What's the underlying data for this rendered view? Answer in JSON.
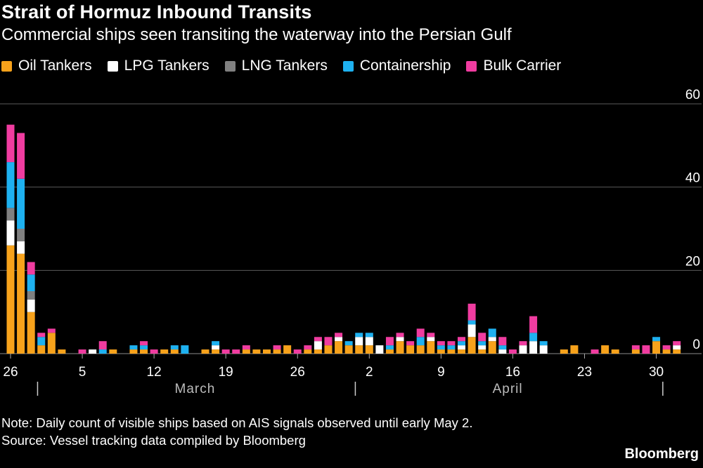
{
  "title": "Strait of Hormuz Inbound Transits",
  "subtitle": "Commercial ships seen transiting the waterway into the Persian Gulf",
  "legend": [
    {
      "label": "Oil Tankers",
      "color": "#F7A21B"
    },
    {
      "label": "LPG Tankers",
      "color": "#FFFFFF"
    },
    {
      "label": "LNG Tankers",
      "color": "#808080"
    },
    {
      "label": "Containership",
      "color": "#1EB1F0"
    },
    {
      "label": "Bulk Carrier",
      "color": "#F03CA0"
    }
  ],
  "note": "Note: Daily count of visible ships based on AIS signals observed until early May 2.",
  "source": "Source: Vessel tracking data compiled by Bloomberg",
  "brand": "Bloomberg",
  "chart_data": {
    "type": "bar",
    "stacked": true,
    "ylim": [
      0,
      60
    ],
    "yticks": [
      0,
      20,
      40,
      60
    ],
    "grid": true,
    "x_tick_labels": [
      "26",
      "5",
      "12",
      "19",
      "26",
      "2",
      "9",
      "16",
      "23",
      "30"
    ],
    "month_labels": [
      "March",
      "April"
    ],
    "categories": [
      "Feb 26",
      "Feb 27",
      "Feb 28",
      "Mar 1",
      "Mar 2",
      "Mar 3",
      "Mar 4",
      "Mar 5",
      "Mar 6",
      "Mar 7",
      "Mar 8",
      "Mar 9",
      "Mar 10",
      "Mar 11",
      "Mar 12",
      "Mar 13",
      "Mar 14",
      "Mar 15",
      "Mar 16",
      "Mar 17",
      "Mar 18",
      "Mar 19",
      "Mar 20",
      "Mar 21",
      "Mar 22",
      "Mar 23",
      "Mar 24",
      "Mar 25",
      "Mar 26",
      "Mar 27",
      "Mar 28",
      "Mar 29",
      "Mar 30",
      "Mar 31",
      "Apr 1",
      "Apr 2",
      "Apr 3",
      "Apr 4",
      "Apr 5",
      "Apr 6",
      "Apr 7",
      "Apr 8",
      "Apr 9",
      "Apr 10",
      "Apr 11",
      "Apr 12",
      "Apr 13",
      "Apr 14",
      "Apr 15",
      "Apr 16",
      "Apr 17",
      "Apr 18",
      "Apr 19",
      "Apr 20",
      "Apr 21",
      "Apr 22",
      "Apr 23",
      "Apr 24",
      "Apr 25",
      "Apr 26",
      "Apr 27",
      "Apr 28",
      "Apr 29",
      "Apr 30",
      "May 1",
      "May 2"
    ],
    "series": [
      {
        "name": "Oil Tankers",
        "color": "#F7A21B",
        "values": [
          26,
          24,
          10,
          2,
          5,
          1,
          0,
          0,
          0,
          0,
          1,
          0,
          1,
          1,
          0,
          1,
          1,
          0,
          0,
          1,
          1,
          0,
          0,
          1,
          1,
          1,
          1,
          2,
          0,
          1,
          1,
          2,
          3,
          2,
          2,
          2,
          0,
          1,
          3,
          2,
          2,
          3,
          1,
          1,
          1,
          4,
          1,
          3,
          0,
          0,
          0,
          0,
          0,
          0,
          1,
          2,
          0,
          0,
          2,
          1,
          0,
          1,
          0,
          3,
          1,
          1
        ]
      },
      {
        "name": "LPG Tankers",
        "color": "#FFFFFF",
        "values": [
          6,
          3,
          3,
          0,
          0,
          0,
          0,
          0,
          1,
          0,
          0,
          0,
          0,
          0,
          0,
          0,
          0,
          0,
          0,
          0,
          1,
          0,
          0,
          0,
          0,
          0,
          0,
          0,
          0,
          0,
          2,
          0,
          1,
          0,
          2,
          2,
          2,
          0,
          1,
          0,
          0,
          1,
          0,
          0,
          1,
          3,
          1,
          1,
          1,
          0,
          2,
          3,
          2,
          0,
          0,
          0,
          0,
          0,
          0,
          0,
          0,
          0,
          0,
          0,
          0,
          1
        ]
      },
      {
        "name": "LNG Tankers",
        "color": "#808080",
        "values": [
          3,
          3,
          2,
          0,
          0,
          0,
          0,
          0,
          0,
          0,
          0,
          0,
          0,
          0,
          0,
          0,
          0,
          0,
          0,
          0,
          0,
          0,
          0,
          0,
          0,
          0,
          0,
          0,
          0,
          0,
          0,
          0,
          0,
          0,
          0,
          0,
          0,
          0,
          0,
          0,
          0,
          0,
          0,
          0,
          0,
          0,
          0,
          0,
          0,
          0,
          0,
          0,
          0,
          0,
          0,
          0,
          0,
          0,
          0,
          0,
          0,
          0,
          0,
          0,
          0,
          0
        ]
      },
      {
        "name": "Containership",
        "color": "#1EB1F0",
        "values": [
          11,
          12,
          4,
          2,
          0,
          0,
          0,
          0,
          0,
          1,
          0,
          0,
          1,
          1,
          0,
          0,
          1,
          2,
          0,
          0,
          1,
          0,
          0,
          0,
          0,
          0,
          0,
          0,
          0,
          0,
          0,
          0,
          0,
          1,
          1,
          1,
          0,
          1,
          0,
          0,
          2,
          0,
          1,
          1,
          1,
          1,
          1,
          2,
          1,
          0,
          0,
          2,
          1,
          0,
          0,
          0,
          0,
          0,
          0,
          0,
          0,
          0,
          0,
          1,
          0,
          0
        ]
      },
      {
        "name": "Bulk Carrier",
        "color": "#F03CA0",
        "values": [
          9,
          11,
          3,
          1,
          1,
          0,
          0,
          1,
          0,
          2,
          0,
          0,
          0,
          1,
          1,
          0,
          0,
          0,
          0,
          0,
          0,
          1,
          1,
          1,
          0,
          0,
          1,
          0,
          1,
          1,
          1,
          2,
          1,
          0,
          0,
          0,
          0,
          2,
          1,
          1,
          2,
          1,
          1,
          1,
          1,
          4,
          2,
          0,
          2,
          1,
          1,
          4,
          0,
          0,
          0,
          0,
          0,
          1,
          0,
          0,
          0,
          1,
          2,
          0,
          1,
          1
        ]
      }
    ]
  }
}
